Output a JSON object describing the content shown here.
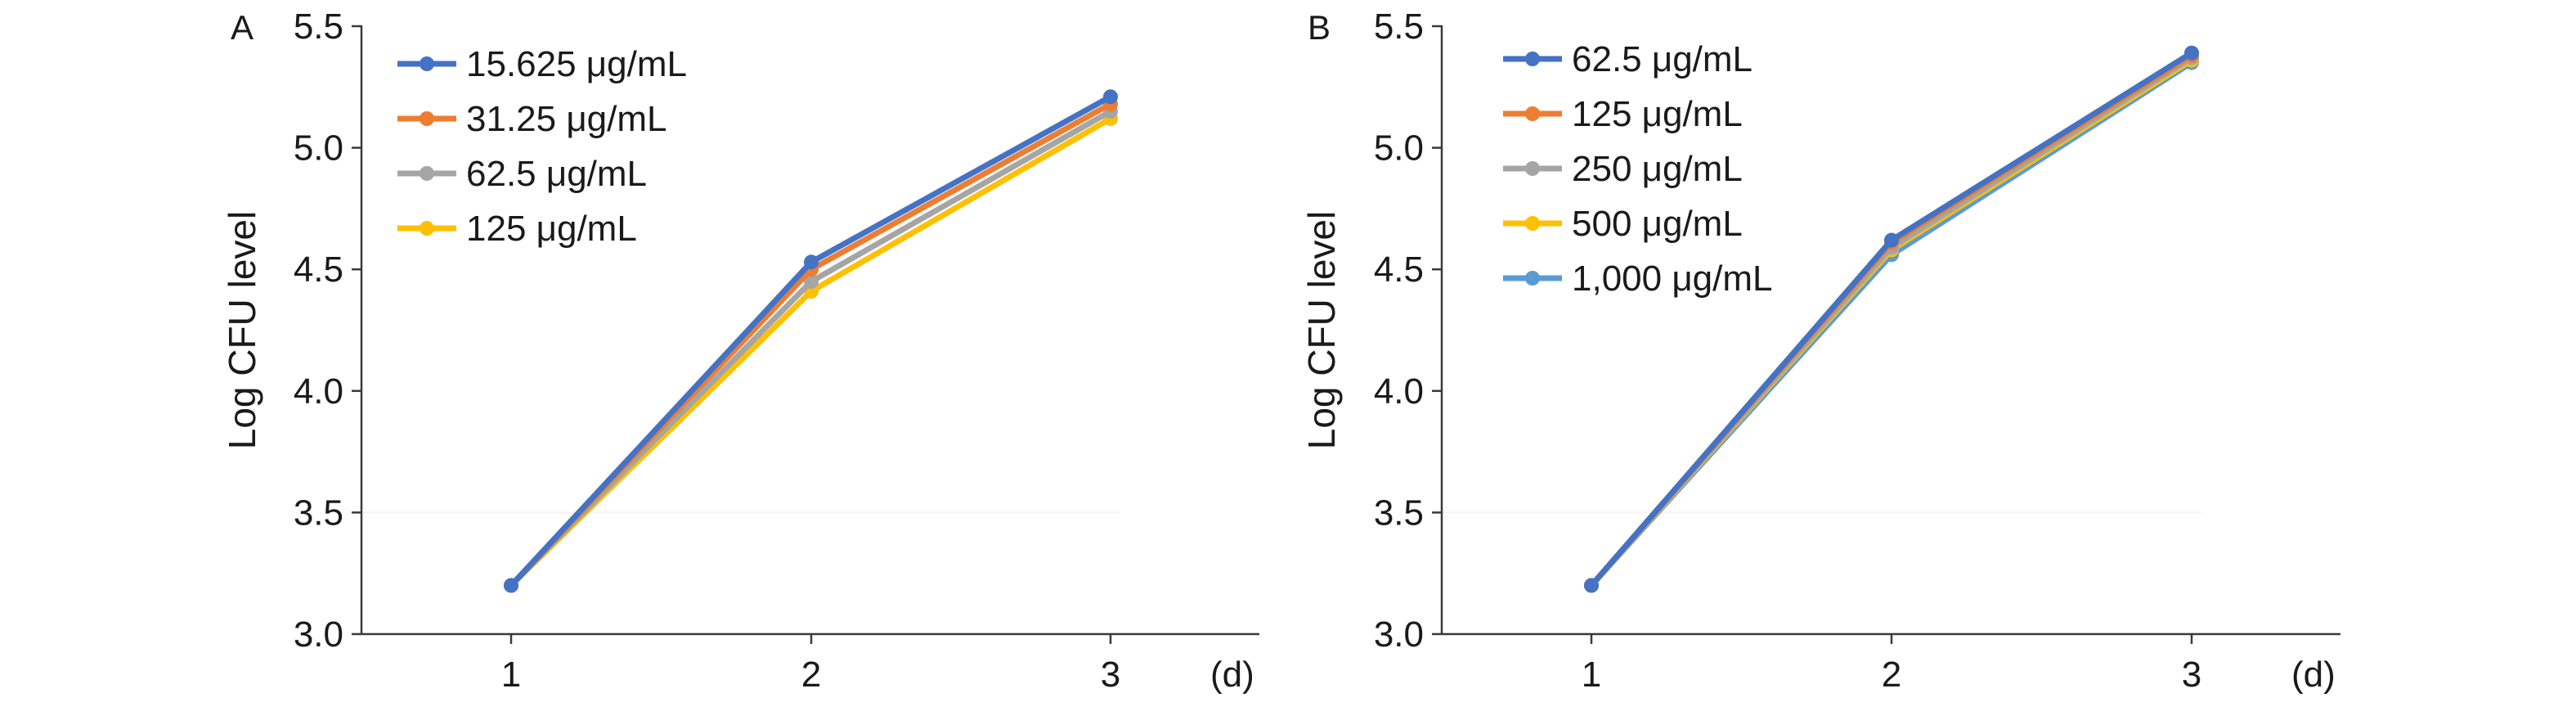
{
  "chart_data": [
    {
      "type": "line",
      "panel_label": "A",
      "ylabel": "Log CFU level",
      "x_unit": "(d)",
      "x": [
        1,
        2,
        3
      ],
      "x_ticks": [
        "1",
        "2",
        "3"
      ],
      "ylim": [
        3.0,
        5.5
      ],
      "y_ticks": [
        "3.0",
        "3.5",
        "4.0",
        "4.5",
        "5.0",
        "5.5"
      ],
      "legend_position": "top-left",
      "series": [
        {
          "name": "15.625 μg/mL",
          "color": "#4472C4",
          "values": [
            3.2,
            4.53,
            5.21
          ]
        },
        {
          "name": "31.25 μg/mL",
          "color": "#ED7D31",
          "values": [
            3.2,
            4.5,
            5.18
          ]
        },
        {
          "name": "62.5 μg/mL",
          "color": "#A5A5A5",
          "values": [
            3.2,
            4.45,
            5.15
          ]
        },
        {
          "name": "125 μg/mL",
          "color": "#FFC000",
          "values": [
            3.2,
            4.41,
            5.12
          ]
        }
      ]
    },
    {
      "type": "line",
      "panel_label": "B",
      "ylabel": "Log CFU level",
      "x_unit": "(d)",
      "x": [
        1,
        2,
        3
      ],
      "x_ticks": [
        "1",
        "2",
        "3"
      ],
      "ylim": [
        3.0,
        5.5
      ],
      "y_ticks": [
        "3.0",
        "3.5",
        "4.0",
        "4.5",
        "5.0",
        "5.5"
      ],
      "legend_position": "top-left",
      "series": [
        {
          "name": "62.5 μg/mL",
          "color": "#4472C4",
          "values": [
            3.2,
            4.62,
            5.39
          ]
        },
        {
          "name": "125 μg/mL",
          "color": "#ED7D31",
          "values": [
            3.2,
            4.61,
            5.38
          ]
        },
        {
          "name": "250 μg/mL",
          "color": "#A5A5A5",
          "values": [
            3.2,
            4.59,
            5.37
          ]
        },
        {
          "name": "500 μg/mL",
          "color": "#FFC000",
          "values": [
            3.2,
            4.58,
            5.36
          ]
        },
        {
          "name": "1,000 μg/mL",
          "color": "#5B9BD5",
          "values": [
            3.2,
            4.56,
            5.35
          ]
        }
      ]
    }
  ]
}
